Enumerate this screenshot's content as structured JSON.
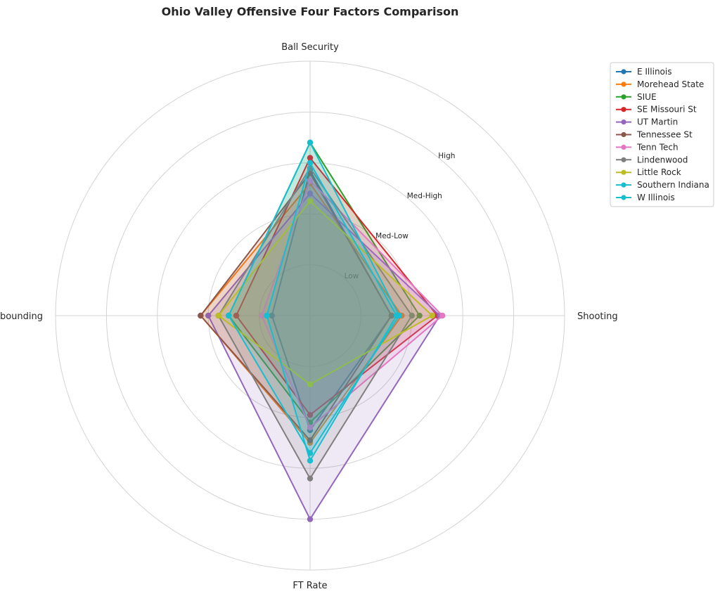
{
  "chart_data": {
    "type": "radar",
    "title": "Ohio Valley Offensive Four Factors Comparison",
    "axes": [
      "Ball Security",
      "Shooting",
      "FT Rate",
      "Off Rebounding"
    ],
    "scale": {
      "min": 0,
      "max": 5,
      "rings": [
        1,
        2,
        3,
        4,
        5
      ]
    },
    "ring_labels": [
      "Low",
      "Med-Low",
      "Med-High",
      "High"
    ],
    "legend_position": "top-right (outside plot)",
    "grid": true,
    "series": [
      {
        "name": "E Illinois",
        "color": "#1f77b4",
        "values": [
          2.85,
          1.6,
          2.25,
          0.75
        ]
      },
      {
        "name": "Morehead State",
        "color": "#ff7f0e",
        "values": [
          2.6,
          1.8,
          2.5,
          2.15
        ]
      },
      {
        "name": "SIUE",
        "color": "#2ca02c",
        "values": [
          3.4,
          2.15,
          2.1,
          1.6
        ]
      },
      {
        "name": "SE Missouri St",
        "color": "#d62728",
        "values": [
          3.1,
          2.5,
          1.95,
          1.45
        ]
      },
      {
        "name": "UT Martin",
        "color": "#9467bd",
        "values": [
          2.4,
          2.55,
          4.0,
          2.0
        ]
      },
      {
        "name": "Tennessee St",
        "color": "#8c564b",
        "values": [
          2.8,
          1.6,
          2.45,
          2.15
        ]
      },
      {
        "name": "Tenn Tech",
        "color": "#e377c2",
        "values": [
          2.65,
          2.6,
          2.2,
          0.95
        ]
      },
      {
        "name": "Lindenwood",
        "color": "#7f7f7f",
        "values": [
          2.9,
          2.0,
          3.2,
          1.8
        ]
      },
      {
        "name": "Little Rock",
        "color": "#bcbd22",
        "values": [
          2.25,
          2.4,
          1.35,
          1.8
        ]
      },
      {
        "name": "Southern Indiana",
        "color": "#17becf",
        "values": [
          3.4,
          1.75,
          2.7,
          1.6
        ]
      },
      {
        "name": "W Illinois",
        "color": "#17becf",
        "values": [
          3.0,
          1.7,
          2.85,
          0.85
        ]
      }
    ]
  }
}
